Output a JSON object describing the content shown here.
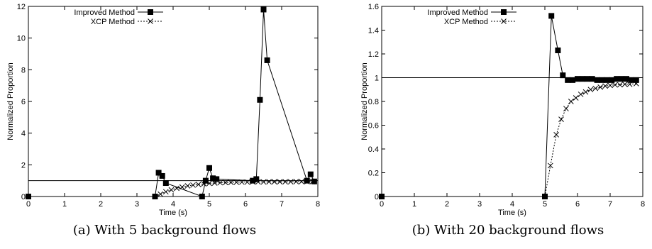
{
  "chart_data": [
    {
      "type": "line",
      "caption": "(a) With 5 background flows",
      "xlabel": "Time (s)",
      "ylabel": "Normalized Proportion",
      "xlim": [
        0,
        8
      ],
      "ylim": [
        0,
        12
      ],
      "xticks": [
        0,
        1,
        2,
        3,
        4,
        5,
        6,
        7,
        8
      ],
      "yticks": [
        0,
        2,
        4,
        6,
        8,
        10,
        12
      ],
      "ytick_labels": [
        "0",
        "2",
        "4",
        "6",
        "8",
        "10",
        "12"
      ],
      "reference_line": 1,
      "legend_position": "top-left",
      "series": [
        {
          "name": "Improved Method",
          "marker": "square",
          "dash": "solid",
          "points": [
            [
              0,
              0
            ],
            [
              3.5,
              0
            ],
            [
              3.6,
              1.5
            ],
            [
              3.7,
              1.3
            ],
            [
              3.8,
              0.85
            ],
            [
              4.8,
              0
            ],
            [
              4.9,
              1.0
            ],
            [
              5.0,
              1.8
            ],
            [
              5.1,
              1.15
            ],
            [
              5.2,
              1.1
            ],
            [
              6.2,
              1.0
            ],
            [
              6.3,
              1.1
            ],
            [
              6.4,
              6.1
            ],
            [
              6.5,
              11.8
            ],
            [
              6.6,
              8.6
            ],
            [
              7.7,
              1.0
            ],
            [
              7.8,
              1.4
            ],
            [
              7.9,
              0.95
            ]
          ]
        },
        {
          "name": "XCP Method",
          "marker": "x",
          "dash": "dotted",
          "points": [
            [
              3.5,
              0
            ],
            [
              3.65,
              0.15
            ],
            [
              3.8,
              0.3
            ],
            [
              3.95,
              0.42
            ],
            [
              4.1,
              0.52
            ],
            [
              4.25,
              0.6
            ],
            [
              4.4,
              0.67
            ],
            [
              4.55,
              0.72
            ],
            [
              4.7,
              0.76
            ],
            [
              4.85,
              0.8
            ],
            [
              5.0,
              0.83
            ],
            [
              5.15,
              0.85
            ],
            [
              5.3,
              0.87
            ],
            [
              5.45,
              0.88
            ],
            [
              5.6,
              0.89
            ],
            [
              5.75,
              0.9
            ],
            [
              5.9,
              0.91
            ],
            [
              6.05,
              0.91
            ],
            [
              6.2,
              0.92
            ],
            [
              6.35,
              0.92
            ],
            [
              6.5,
              0.92
            ],
            [
              6.65,
              0.93
            ],
            [
              6.8,
              0.93
            ],
            [
              6.95,
              0.93
            ],
            [
              7.1,
              0.93
            ],
            [
              7.25,
              0.93
            ],
            [
              7.4,
              0.94
            ],
            [
              7.55,
              0.94
            ],
            [
              7.7,
              0.94
            ],
            [
              7.85,
              0.94
            ]
          ]
        }
      ]
    },
    {
      "type": "line",
      "caption": "(b) With 20 background flows",
      "xlabel": "Time (s)",
      "ylabel": "Normalized Proportion",
      "xlim": [
        0,
        8
      ],
      "ylim": [
        0,
        1.6
      ],
      "xticks": [
        0,
        1,
        2,
        3,
        4,
        5,
        6,
        7,
        8
      ],
      "yticks": [
        0,
        0.2,
        0.4,
        0.6,
        0.8,
        1,
        1.2,
        1.4,
        1.6
      ],
      "ytick_labels": [
        "0",
        "0.2",
        "0.4",
        "0.6",
        "0.8",
        "1",
        "1.2",
        "1.4",
        "1.6"
      ],
      "reference_line": 1,
      "legend_position": "top-left",
      "series": [
        {
          "name": "Improved Method",
          "marker": "square",
          "dash": "solid",
          "points": [
            [
              0,
              0
            ],
            [
              5.0,
              0
            ],
            [
              5.2,
              1.52
            ],
            [
              5.4,
              1.23
            ],
            [
              5.55,
              1.02
            ],
            [
              5.7,
              0.98
            ],
            [
              5.85,
              0.98
            ],
            [
              6.0,
              0.99
            ],
            [
              6.15,
              0.99
            ],
            [
              6.3,
              0.99
            ],
            [
              6.45,
              0.99
            ],
            [
              6.6,
              0.98
            ],
            [
              6.75,
              0.98
            ],
            [
              6.9,
              0.98
            ],
            [
              7.05,
              0.98
            ],
            [
              7.2,
              0.99
            ],
            [
              7.35,
              0.99
            ],
            [
              7.5,
              0.99
            ],
            [
              7.65,
              0.98
            ],
            [
              7.8,
              0.98
            ]
          ]
        },
        {
          "name": "XCP Method",
          "marker": "x",
          "dash": "dotted",
          "points": [
            [
              5.0,
              0
            ],
            [
              5.17,
              0.26
            ],
            [
              5.35,
              0.52
            ],
            [
              5.5,
              0.65
            ],
            [
              5.65,
              0.74
            ],
            [
              5.8,
              0.8
            ],
            [
              5.95,
              0.83
            ],
            [
              6.1,
              0.86
            ],
            [
              6.25,
              0.88
            ],
            [
              6.4,
              0.9
            ],
            [
              6.55,
              0.91
            ],
            [
              6.7,
              0.92
            ],
            [
              6.85,
              0.93
            ],
            [
              7.0,
              0.935
            ],
            [
              7.15,
              0.94
            ],
            [
              7.3,
              0.94
            ],
            [
              7.45,
              0.945
            ],
            [
              7.6,
              0.945
            ],
            [
              7.8,
              0.95
            ]
          ]
        }
      ]
    }
  ]
}
